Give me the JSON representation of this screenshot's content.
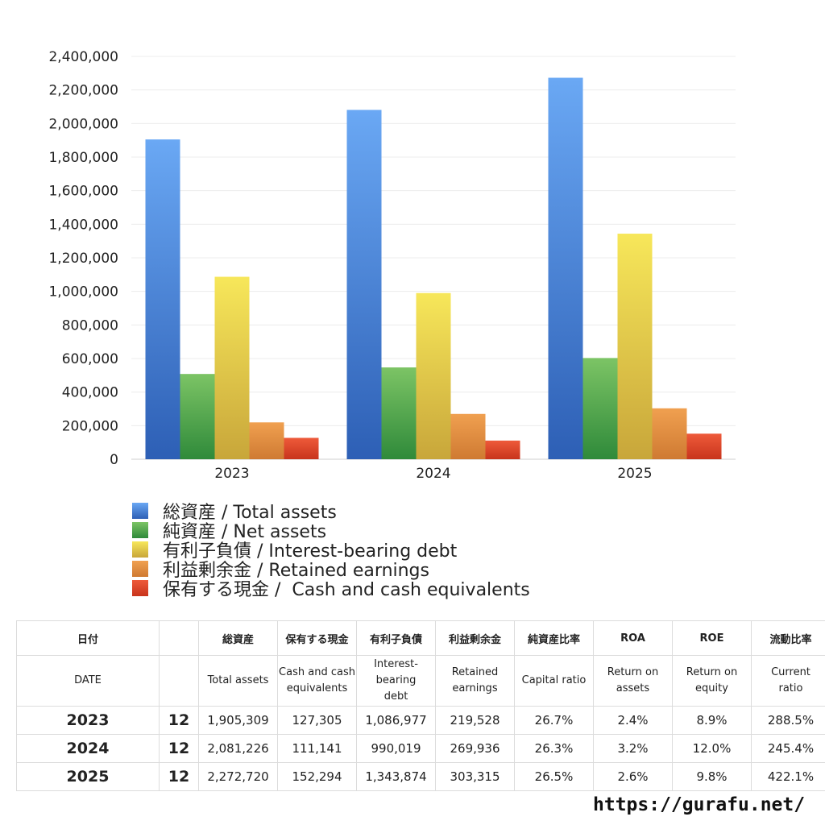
{
  "colors": {
    "total_assets": [
      "#6aa8f4",
      "#2d5fb5"
    ],
    "net_assets": [
      "#7cc465",
      "#2f8a3a"
    ],
    "interest_debt": [
      "#f7e75a",
      "#c8a63a"
    ],
    "retained": [
      "#f0a050",
      "#cf7a32"
    ],
    "cash": [
      "#ee5a3a",
      "#c8341c"
    ]
  },
  "chart_data": {
    "type": "bar",
    "categories": [
      "2023",
      "2024",
      "2025"
    ],
    "ylim": [
      0,
      2400000
    ],
    "yticks": [
      {
        "v": 0,
        "label": "0"
      },
      {
        "v": 200000,
        "label": "200,000"
      },
      {
        "v": 400000,
        "label": "400,000"
      },
      {
        "v": 600000,
        "label": "600,000"
      },
      {
        "v": 800000,
        "label": "800,000"
      },
      {
        "v": 1000000,
        "label": "1,000,000"
      },
      {
        "v": 1200000,
        "label": "1,200,000"
      },
      {
        "v": 1400000,
        "label": "1,400,000"
      },
      {
        "v": 1600000,
        "label": "1,600,000"
      },
      {
        "v": 1800000,
        "label": "1,800,000"
      },
      {
        "v": 2000000,
        "label": "2,000,000"
      },
      {
        "v": 2200000,
        "label": "2,200,000"
      },
      {
        "v": 2400000,
        "label": "2,400,000"
      }
    ],
    "grid": true,
    "legend": "bottom",
    "series": [
      {
        "name": "総資産 / Total assets",
        "color_key": "total_assets",
        "values": [
          1905309,
          2081226,
          2272720
        ]
      },
      {
        "name": "純資産 / Net assets",
        "color_key": "net_assets",
        "values": [
          508000,
          547000,
          603000
        ]
      },
      {
        "name": "有利子負債 / Interest-bearing debt",
        "color_key": "interest_debt",
        "values": [
          1086977,
          990019,
          1343874
        ]
      },
      {
        "name": "利益剰余金 / Retained earnings",
        "color_key": "retained",
        "values": [
          219528,
          269936,
          303315
        ]
      },
      {
        "name": "保有する現金 /  Cash and cash equivalents",
        "color_key": "cash",
        "values": [
          127305,
          111141,
          152294
        ]
      }
    ]
  },
  "table": {
    "header_jp": [
      "日付",
      "",
      "総資産",
      "保有する現金",
      "有利子負債",
      "利益剰余金",
      "純資産比率",
      "ROA",
      "ROE",
      "流動比率"
    ],
    "header_en": [
      [
        "DATE"
      ],
      [
        ""
      ],
      [
        "Total assets"
      ],
      [
        "Cash and cash",
        "equivalents"
      ],
      [
        "Interest-",
        "bearing",
        "debt"
      ],
      [
        "Retained",
        "earnings"
      ],
      [
        "Capital ratio"
      ],
      [
        "Return on",
        "assets"
      ],
      [
        "Return on",
        "equity"
      ],
      [
        "Current",
        "ratio"
      ]
    ],
    "rows": [
      [
        "2023",
        "12",
        "1,905,309",
        "127,305",
        "1,086,977",
        "219,528",
        "26.7%",
        "2.4%",
        "8.9%",
        "288.5%"
      ],
      [
        "2024",
        "12",
        "2,081,226",
        "111,141",
        "990,019",
        "269,936",
        "26.3%",
        "3.2%",
        "12.0%",
        "245.4%"
      ],
      [
        "2025",
        "12",
        "2,272,720",
        "152,294",
        "1,343,874",
        "303,315",
        "26.5%",
        "2.6%",
        "9.8%",
        "422.1%"
      ]
    ]
  },
  "footer": {
    "url": "https://gurafu.net/"
  }
}
